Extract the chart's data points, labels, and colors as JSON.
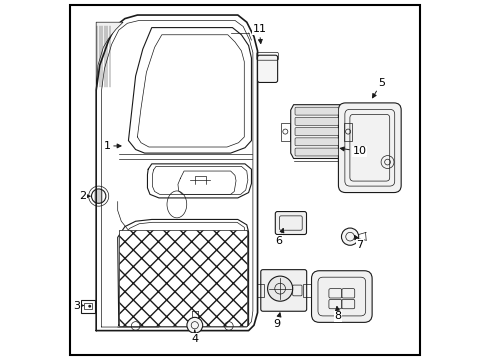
{
  "background_color": "#ffffff",
  "line_color": "#1a1a1a",
  "text_color": "#000000",
  "fig_width": 4.9,
  "fig_height": 3.6,
  "dpi": 100,
  "font_size": 8,
  "labels": [
    [
      1,
      0.115,
      0.595,
      0.165,
      0.595
    ],
    [
      2,
      0.048,
      0.455,
      0.078,
      0.455
    ],
    [
      3,
      0.03,
      0.15,
      0.06,
      0.15
    ],
    [
      4,
      0.36,
      0.058,
      0.36,
      0.09
    ],
    [
      5,
      0.88,
      0.77,
      0.85,
      0.72
    ],
    [
      6,
      0.595,
      0.33,
      0.61,
      0.375
    ],
    [
      7,
      0.82,
      0.32,
      0.8,
      0.355
    ],
    [
      8,
      0.76,
      0.12,
      0.755,
      0.158
    ],
    [
      9,
      0.59,
      0.098,
      0.6,
      0.14
    ],
    [
      10,
      0.82,
      0.58,
      0.755,
      0.59
    ],
    [
      11,
      0.54,
      0.92,
      0.545,
      0.87
    ]
  ]
}
